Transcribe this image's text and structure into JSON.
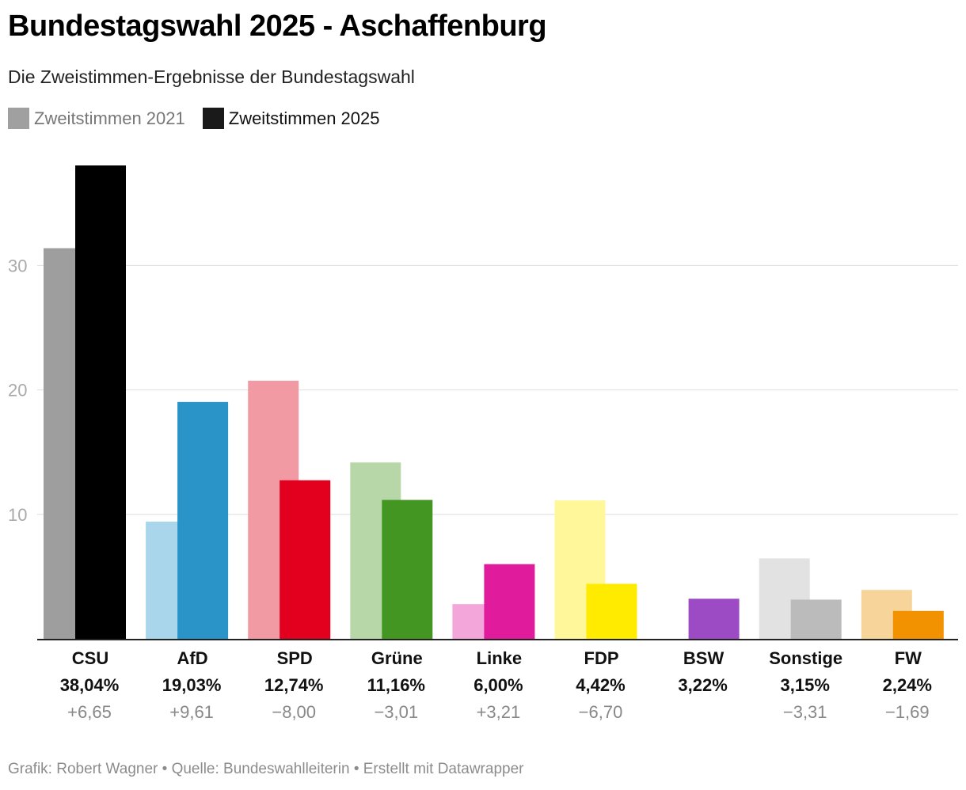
{
  "header": {
    "title": "Bundestagswahl 2025 - Aschaffenburg",
    "subtitle": "Die Zweistimmen-Ergebnisse der Bundestagswahl"
  },
  "legend": [
    {
      "label": "Zweitstimmen 2021",
      "color": "#a0a0a0"
    },
    {
      "label": "Zweitstimmen 2025",
      "color": "#1a1a1a"
    }
  ],
  "footer": "Grafik: Robert Wagner • Quelle: Bundeswahlleiterin • Erstellt mit Datawrapper",
  "chart_data": {
    "type": "bar",
    "title": "Bundestagswahl 2025 - Aschaffenburg",
    "xlabel": "",
    "ylabel": "",
    "ylim": [
      0,
      38.04
    ],
    "yticks": [
      10,
      20,
      30
    ],
    "grid": true,
    "categories": [
      "CSU",
      "AfD",
      "SPD",
      "Grüne",
      "Linke",
      "FDP",
      "BSW",
      "Sonstige",
      "FW"
    ],
    "series": [
      {
        "name": "Zweitstimmen 2021",
        "values": [
          31.39,
          9.42,
          20.74,
          14.17,
          2.79,
          11.12,
          null,
          6.46,
          3.93
        ]
      },
      {
        "name": "Zweitstimmen 2025",
        "values": [
          38.04,
          19.03,
          12.74,
          11.16,
          6.0,
          4.42,
          3.22,
          3.15,
          2.24
        ]
      }
    ],
    "value_labels": [
      "38,04%",
      "19,03%",
      "12,74%",
      "11,16%",
      "6,00%",
      "4,42%",
      "3,22%",
      "3,15%",
      "2,24%"
    ],
    "change_labels": [
      "+6,65",
      "+9,61",
      "−8,00",
      "−3,01",
      "+3,21",
      "−6,70",
      "",
      "−3,31",
      "−1,69"
    ],
    "colors_2021": [
      "#9e9e9e",
      "#a9d6ea",
      "#f29aa3",
      "#b8d7a8",
      "#f2a6d9",
      "#fff799",
      null,
      "#e2e2e2",
      "#f7d49a"
    ],
    "colors_2025": [
      "#000000",
      "#2a94c9",
      "#e3001f",
      "#449623",
      "#e01c9c",
      "#ffeb00",
      "#9c4bc4",
      "#bbbbbb",
      "#f29200"
    ]
  }
}
